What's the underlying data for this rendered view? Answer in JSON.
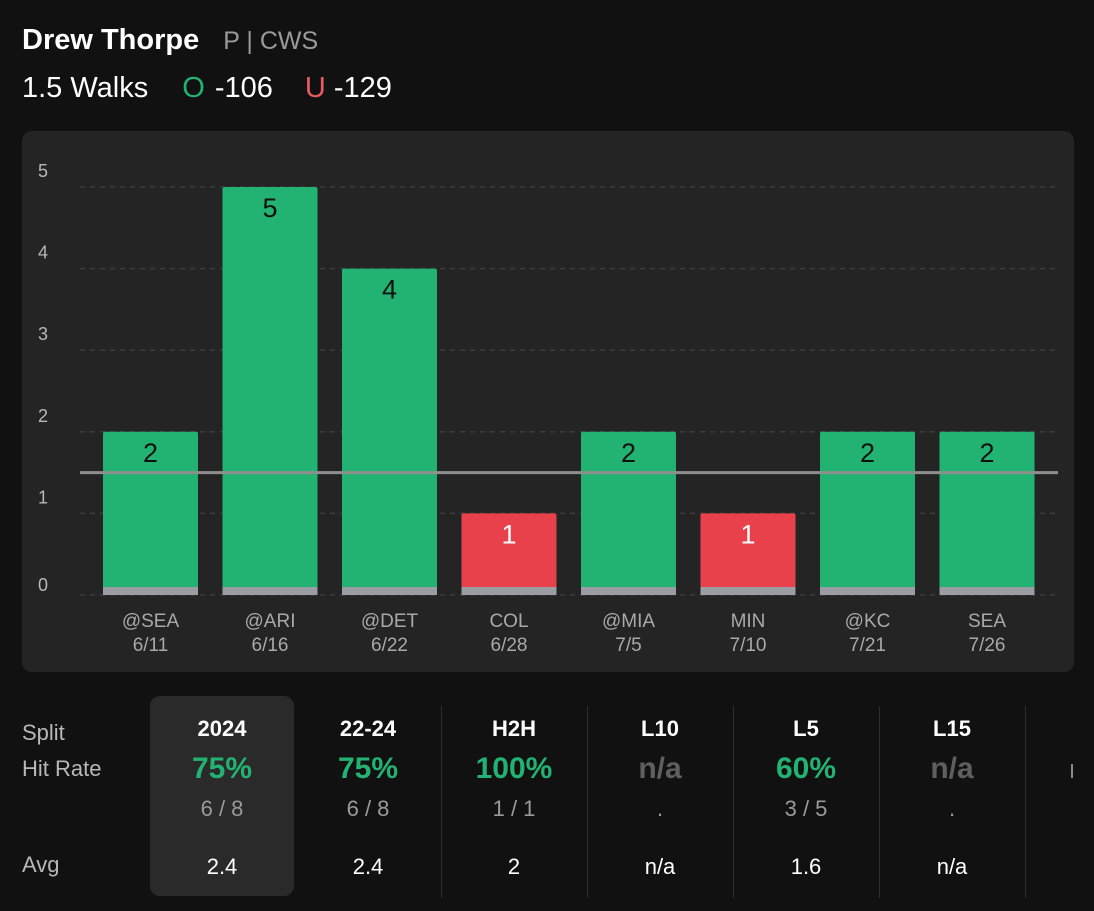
{
  "player": {
    "name": "Drew Thorpe",
    "meta": "P | CWS"
  },
  "prop": {
    "line_label": "1.5 Walks",
    "over_tag": "O",
    "over_odds": "-106",
    "under_tag": "U",
    "under_odds": "-129"
  },
  "colors": {
    "over": "#22b373",
    "under": "#e8414b",
    "line": "#8f8f8f",
    "base": "#9a9da3"
  },
  "chart_data": {
    "type": "bar",
    "y_ticks": [
      "0",
      "1",
      "2",
      "3",
      "4",
      "5"
    ],
    "ylim": [
      0,
      5
    ],
    "threshold": 1.5,
    "grid": true,
    "categories": [
      {
        "team": "@SEA",
        "date": "6/11"
      },
      {
        "team": "@ARI",
        "date": "6/16"
      },
      {
        "team": "@DET",
        "date": "6/22"
      },
      {
        "team": "COL",
        "date": "6/28"
      },
      {
        "team": "@MIA",
        "date": "7/5"
      },
      {
        "team": "MIN",
        "date": "7/10"
      },
      {
        "team": "@KC",
        "date": "7/21"
      },
      {
        "team": "SEA",
        "date": "7/26"
      }
    ],
    "values": [
      2,
      5,
      4,
      1,
      2,
      1,
      2,
      2
    ],
    "outcomes": [
      "over",
      "over",
      "over",
      "under",
      "over",
      "under",
      "over",
      "over"
    ]
  },
  "stats": {
    "labels": {
      "split": "Split",
      "hit_rate": "Hit Rate",
      "avg": "Avg"
    },
    "columns": [
      {
        "title": "2024",
        "rate": "75%",
        "frac": "6 / 8",
        "avg": "2.4",
        "rate_style": "green",
        "selected": true
      },
      {
        "title": "22-24",
        "rate": "75%",
        "frac": "6 / 8",
        "avg": "2.4",
        "rate_style": "green",
        "selected": false
      },
      {
        "title": "H2H",
        "rate": "100%",
        "frac": "1 / 1",
        "avg": "2",
        "rate_style": "green",
        "selected": false
      },
      {
        "title": "L10",
        "rate": "n/a",
        "frac": ".",
        "avg": "n/a",
        "rate_style": "gray",
        "selected": false
      },
      {
        "title": "L5",
        "rate": "60%",
        "frac": "3 / 5",
        "avg": "1.6",
        "rate_style": "green",
        "selected": false
      },
      {
        "title": "L15",
        "rate": "n/a",
        "frac": ".",
        "avg": "n/a",
        "rate_style": "gray",
        "selected": false
      }
    ]
  }
}
